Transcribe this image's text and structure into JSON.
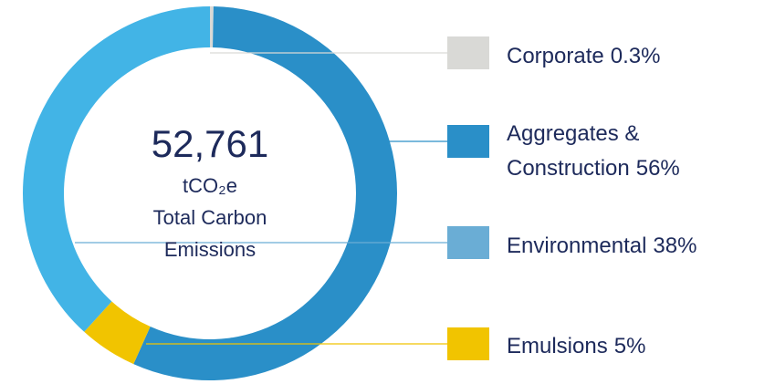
{
  "chart_data": {
    "type": "donut",
    "categories": [
      "Corporate",
      "Aggregates & Construction",
      "Environmental",
      "Emulsions"
    ],
    "values": [
      0.3,
      56,
      38,
      5
    ],
    "value_labels": [
      "0.3%",
      "56%",
      "38%",
      "5%"
    ],
    "colors": [
      "#d9d9d6",
      "#2a8fc8",
      "#42b4e6",
      "#f1c400"
    ],
    "legend_colors": [
      "#d9d9d6",
      "#2a8fc8",
      "#6aadd5",
      "#f1c400"
    ],
    "total": {
      "value": 52761,
      "label": "52,761"
    },
    "unit": "tCO₂e",
    "caption": "Total Carbon Emissions"
  }
}
